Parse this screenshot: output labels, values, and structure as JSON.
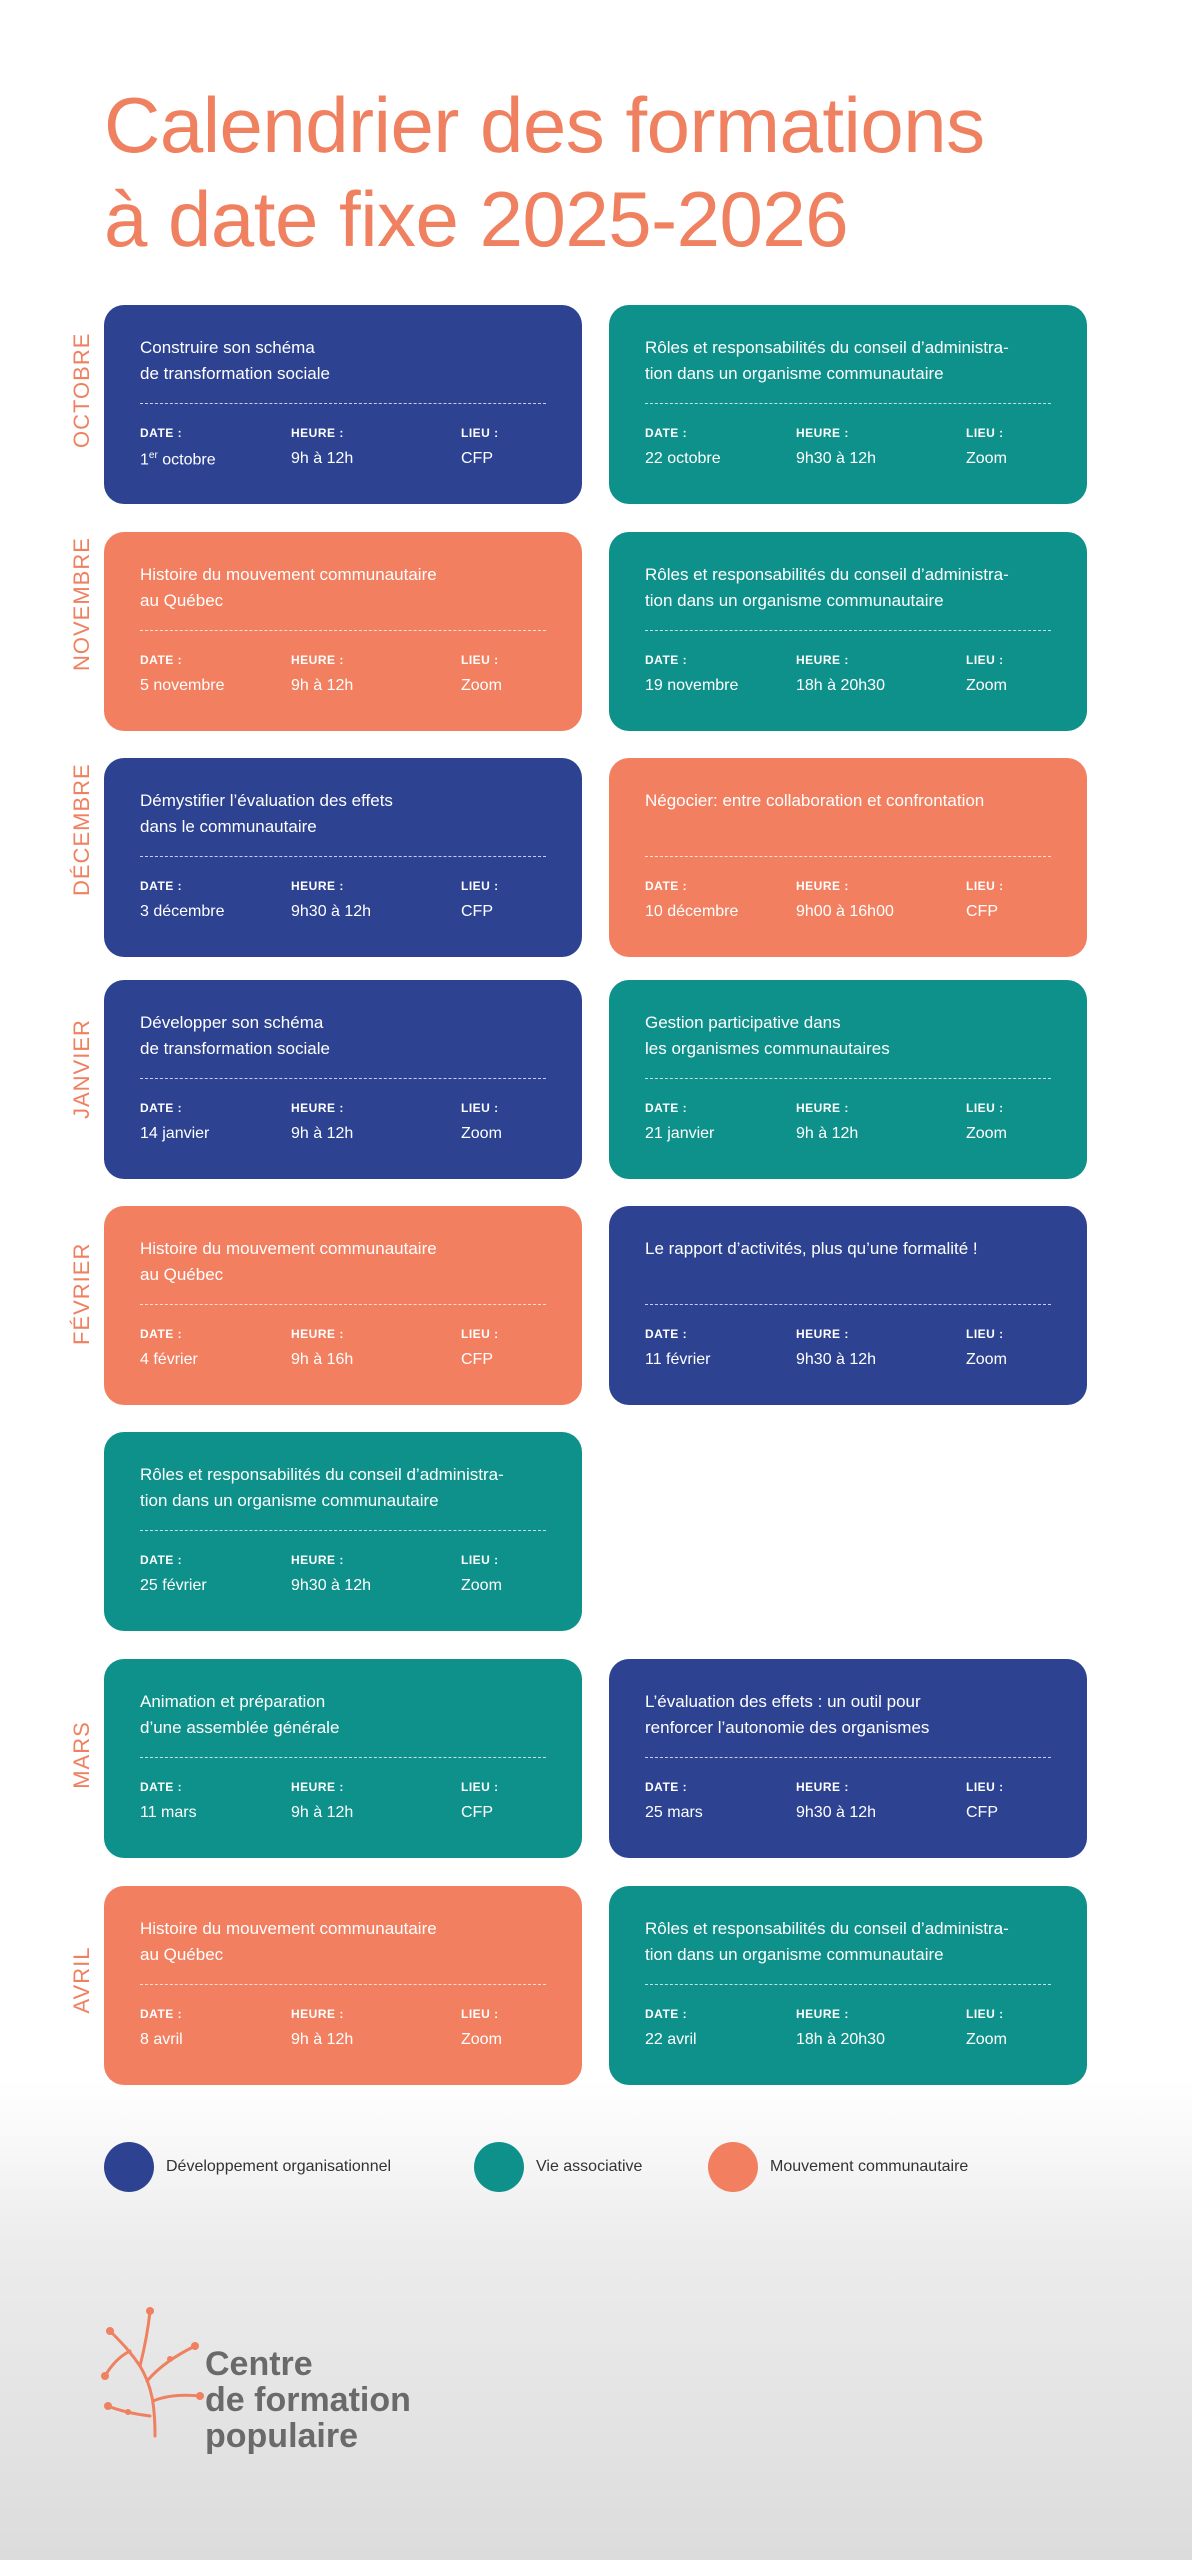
{
  "title": "Calendrier des formations\nà date fixe 2025-2026",
  "colors": {
    "blue": "#2d4291",
    "teal": "#0e918a",
    "orange": "#f27f60",
    "accent": "#ef8060"
  },
  "labels": {
    "date": "DATE :",
    "time": "HEURE :",
    "place": "LIEU :"
  },
  "months": [
    "OCTOBRE",
    "NOVEMBRE",
    "DÉCEMBRE",
    "JANVIER",
    "FÉVRIER",
    "MARS",
    "AVRIL"
  ],
  "cards": [
    {
      "title": "Construire son schéma\nde transformation sociale",
      "date": "1er octobre",
      "time": "9h à 12h",
      "place": "CFP",
      "theme": "blue"
    },
    {
      "title": "Rôles et responsabilités du conseil d’administra-\ntion dans un organisme communautaire",
      "date": "22 octobre",
      "time": "9h30 à 12h",
      "place": "Zoom",
      "theme": "teal"
    },
    {
      "title": "Histoire du mouvement communautaire\nau Québec",
      "date": "5 novembre",
      "time": "9h à 12h",
      "place": "Zoom",
      "theme": "orange"
    },
    {
      "title": "Rôles et responsabilités du conseil d’administra-\ntion dans un organisme communautaire",
      "date": "19 novembre",
      "time": "18h à 20h30",
      "place": "Zoom",
      "theme": "teal"
    },
    {
      "title": "Démystifier l’évaluation des effets\ndans le communautaire",
      "date": "3 décembre",
      "time": "9h30 à 12h",
      "place": "CFP",
      "theme": "blue"
    },
    {
      "title": "Négocier: entre collaboration et confrontation",
      "date": "10 décembre",
      "time": "9h00 à 16h00",
      "place": "CFP",
      "theme": "orange"
    },
    {
      "title": "Développer son schéma\nde transformation sociale",
      "date": "14 janvier",
      "time": "9h à 12h",
      "place": "Zoom",
      "theme": "blue"
    },
    {
      "title": "Gestion participative dans\nles organismes communautaires",
      "date": "21 janvier",
      "time": "9h à 12h",
      "place": "Zoom",
      "theme": "teal"
    },
    {
      "title": "Histoire du mouvement communautaire\nau Québec",
      "date": "4 février",
      "time": "9h à 16h",
      "place": "CFP",
      "theme": "orange"
    },
    {
      "title": "Le rapport d’activités, plus qu’une formalité !",
      "date": "11 février",
      "time": "9h30 à 12h",
      "place": "Zoom",
      "theme": "blue"
    },
    {
      "title": "Rôles et responsabilités du conseil d’administra-\ntion dans un organisme communautaire",
      "date": "25 février",
      "time": "9h30 à 12h",
      "place": "Zoom",
      "theme": "teal"
    },
    {
      "title": "Animation et préparation\nd’une assemblée générale",
      "date": "11 mars",
      "time": "9h à 12h",
      "place": "CFP",
      "theme": "teal"
    },
    {
      "title": "L’évaluation des effets : un outil pour\nrenforcer l’autonomie des organismes",
      "date": "25 mars",
      "time": "9h30 à 12h",
      "place": "CFP",
      "theme": "blue"
    },
    {
      "title": "Histoire du mouvement communautaire\nau Québec",
      "date": "8 avril",
      "time": "9h à 12h",
      "place": "Zoom",
      "theme": "orange"
    },
    {
      "title": "Rôles et responsabilités du conseil d’administra-\ntion dans un organisme communautaire",
      "date": "22 avril",
      "time": "18h à 20h30",
      "place": "Zoom",
      "theme": "teal"
    }
  ],
  "legend": [
    {
      "label": "Développement organisationnel",
      "color": "#2d4291"
    },
    {
      "label": "Vie associative",
      "color": "#0e918a"
    },
    {
      "label": "Mouvement communautaire",
      "color": "#f27f60"
    }
  ],
  "logo": {
    "text": "Centre\nde formation\npopulaire"
  }
}
